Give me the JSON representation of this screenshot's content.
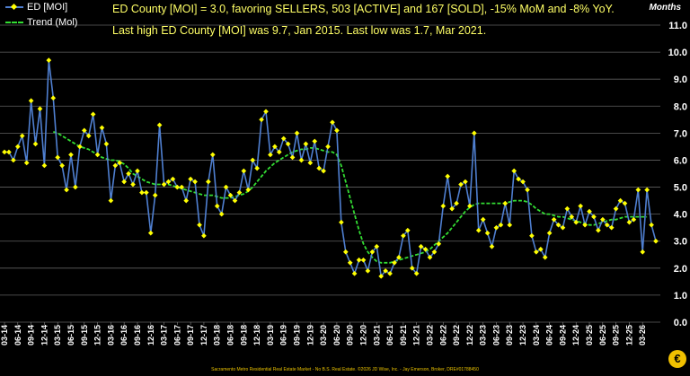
{
  "headline_1": "ED County [MOI] = 3.0, favoring SELLERS, 503 [ACTIVE] and 167 [SOLD], -15% MoM and -8% YoY.",
  "headline_2": "Last high ED County [MOI] was 9.7, Jan 2015. Last low was 1.7, Mar 2021.",
  "axis_unit_label": "Months",
  "footer": "Sacramento Metro Residential Real Estate Market - No B.S. Real Estate. ©2026 JD Wise, Inc. - Jay Emerson, Broker, DRE#01788450",
  "logo_letter": "€",
  "colors": {
    "moi": "#4f7fd0",
    "moi_marker": "#ffff00",
    "trend": "#33dd33",
    "grid": "#606060",
    "headline": "#ffff66"
  },
  "chart_data": {
    "type": "line",
    "y_axis_side": "right",
    "ylim": [
      0,
      11
    ],
    "yticks": [
      "0.0",
      "1.0",
      "2.0",
      "3.0",
      "4.0",
      "5.0",
      "6.0",
      "7.0",
      "8.0",
      "9.0",
      "10.0",
      "11.0"
    ],
    "grid": true,
    "legend_position": "top-left",
    "x_tick_labels": [
      "03-14",
      "06-14",
      "09-14",
      "12-14",
      "03-15",
      "06-15",
      "09-15",
      "12-15",
      "03-16",
      "06-16",
      "09-16",
      "12-16",
      "03-17",
      "06-17",
      "09-17",
      "12-17",
      "03-18",
      "06-18",
      "09-18",
      "12-18",
      "03-19",
      "06-19",
      "09-19",
      "12-19",
      "03-20",
      "06-20",
      "09-20",
      "12-20",
      "03-21",
      "06-21",
      "09-21",
      "12-21",
      "03-22",
      "06-22",
      "09-22",
      "12-22",
      "03-23",
      "06-23",
      "09-23",
      "12-23",
      "03-24",
      "06-24",
      "09-24",
      "12-24",
      "03-25",
      "06-25",
      "09-25",
      "12-25",
      "03-26"
    ],
    "series": [
      {
        "name": "ED [MOI]",
        "values": [
          6.3,
          6.3,
          6.0,
          6.5,
          6.9,
          5.9,
          8.2,
          6.6,
          7.9,
          5.8,
          9.7,
          8.3,
          6.1,
          5.8,
          4.9,
          6.2,
          5.0,
          6.5,
          7.1,
          6.9,
          7.7,
          6.2,
          7.2,
          6.6,
          4.5,
          5.8,
          5.9,
          5.2,
          5.5,
          5.1,
          5.6,
          4.8,
          4.8,
          3.3,
          4.7,
          7.3,
          5.1,
          5.2,
          5.3,
          5.0,
          5.0,
          4.5,
          5.3,
          5.2,
          3.6,
          3.2,
          5.2,
          6.2,
          4.3,
          4.0,
          5.0,
          4.7,
          4.5,
          4.8,
          5.6,
          4.9,
          6.0,
          5.7,
          7.5,
          7.8,
          6.2,
          6.5,
          6.3,
          6.8,
          6.6,
          6.1,
          7.0,
          6.0,
          6.6,
          5.9,
          6.7,
          5.7,
          5.6,
          6.5,
          7.4,
          7.1,
          3.7,
          2.6,
          2.2,
          1.8,
          2.3,
          2.3,
          1.9,
          2.6,
          2.8,
          1.7,
          1.9,
          1.8,
          2.2,
          2.4,
          3.2,
          3.4,
          2.0,
          1.8,
          2.8,
          2.7,
          2.4,
          2.6,
          2.9,
          4.3,
          5.4,
          4.2,
          4.4,
          5.1,
          5.2,
          4.3,
          7.0,
          3.4,
          3.8,
          3.3,
          2.8,
          3.5,
          3.6,
          4.4,
          3.6,
          5.6,
          5.3,
          5.2,
          4.9,
          3.2,
          2.6,
          2.7,
          2.4,
          3.3,
          3.8,
          3.6,
          3.5,
          4.2,
          3.9,
          3.7,
          4.3,
          3.6,
          4.1,
          3.9,
          3.4,
          3.8,
          3.6,
          3.5,
          4.2,
          4.5,
          4.4,
          3.7,
          3.8,
          4.9,
          2.6,
          4.9,
          3.6,
          3.0
        ]
      },
      {
        "name": "Trend (Mol)",
        "values": [
          null,
          null,
          null,
          null,
          null,
          null,
          null,
          null,
          null,
          null,
          null,
          7.05,
          7.0,
          6.9,
          6.8,
          6.7,
          6.6,
          6.5,
          6.45,
          6.4,
          6.3,
          6.2,
          6.1,
          6.05,
          6.0,
          6.0,
          5.95,
          5.85,
          5.7,
          5.5,
          5.4,
          5.3,
          5.2,
          5.15,
          5.1,
          5.1,
          5.1,
          5.1,
          5.05,
          5.0,
          4.95,
          4.9,
          4.85,
          4.8,
          4.75,
          4.7,
          4.7,
          4.7,
          4.65,
          4.6,
          4.6,
          4.6,
          4.65,
          4.7,
          4.75,
          4.85,
          5.0,
          5.2,
          5.4,
          5.6,
          5.75,
          5.9,
          6.0,
          6.1,
          6.2,
          6.3,
          6.35,
          6.4,
          6.4,
          6.45,
          6.45,
          6.4,
          6.35,
          6.3,
          6.3,
          6.2,
          5.8,
          5.2,
          4.6,
          4.0,
          3.4,
          2.9,
          2.6,
          2.4,
          2.25,
          2.2,
          2.2,
          2.2,
          2.25,
          2.3,
          2.35,
          2.4,
          2.45,
          2.5,
          2.55,
          2.6,
          2.7,
          2.85,
          3.0,
          3.15,
          3.3,
          3.5,
          3.7,
          3.9,
          4.1,
          4.25,
          4.35,
          4.4,
          4.4,
          4.4,
          4.4,
          4.4,
          4.4,
          4.4,
          4.45,
          4.5,
          4.5,
          4.5,
          4.45,
          4.35,
          4.2,
          4.1,
          4.0,
          4.0,
          3.95,
          3.9,
          3.9,
          3.85,
          3.8,
          3.75,
          3.7,
          3.65,
          3.6,
          3.6,
          3.65,
          3.7,
          3.75,
          3.8,
          3.8,
          3.85,
          3.9,
          3.9,
          3.9,
          3.9,
          3.9,
          3.9
        ]
      }
    ]
  }
}
